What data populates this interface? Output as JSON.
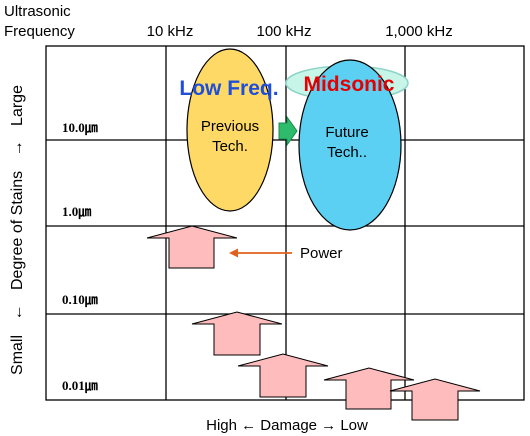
{
  "header": {
    "title_line1": "Ultrasonic",
    "title_line2": "Frequency"
  },
  "frequency_ticks": [
    "10 kHz",
    "100 kHz",
    "1,000 kHz"
  ],
  "stain_levels": [
    "10.0㎛",
    "1.0㎛",
    "0.10㎛",
    "0.01㎛"
  ],
  "y_axis": {
    "small": "Small",
    "arrow_down": "←",
    "degree": "Degree of Stains",
    "arrow_up": "→",
    "large": "Large"
  },
  "x_axis": {
    "label": "High ← Damage → Low"
  },
  "regions": {
    "low_freq": "Low Freq.",
    "midsonic": "Midsonic",
    "previous_line1": "Previous",
    "previous_line2": "Tech.",
    "future_line1": "Future",
    "future_line2": "Tech.."
  },
  "power_label": "Power",
  "colors": {
    "previous_fill": "#ffd966",
    "future_fill": "#5bd0f3",
    "low_freq_text": "#1f4fd8",
    "midsonic_text": "#e60000",
    "midsonic_ellipse": "#c7f5e8",
    "power_arrow_fill": "#ffbcbc",
    "pointer_arrow": "#e0601c",
    "transition_arrow": "#2dbb6c"
  }
}
